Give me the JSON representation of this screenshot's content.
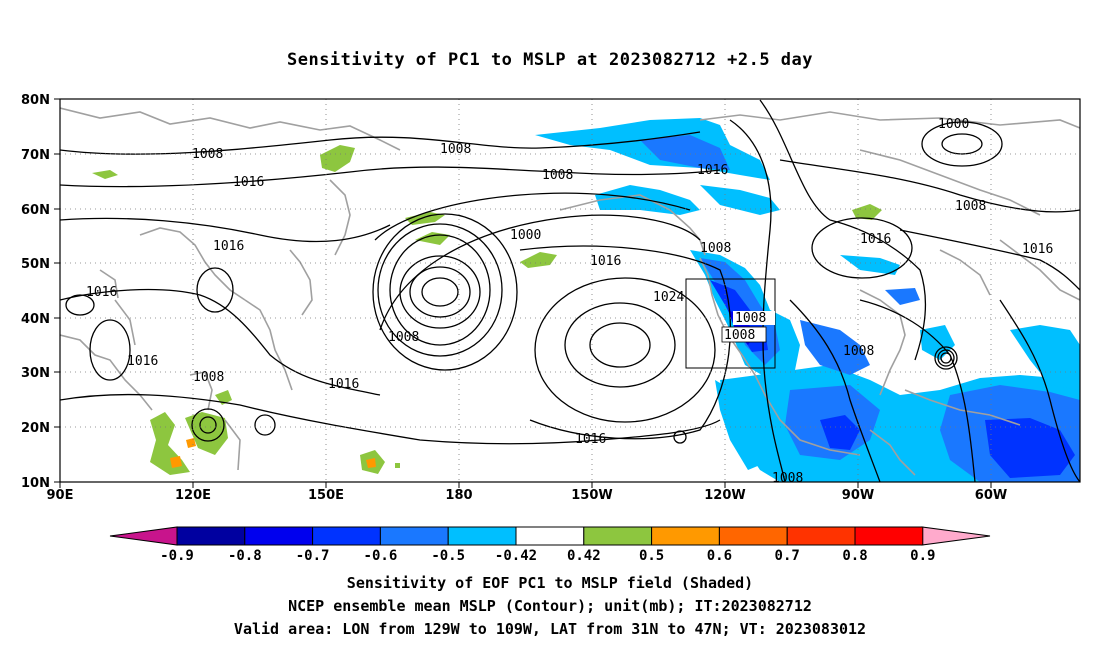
{
  "title": "Sensitivity of PC1 to MSLP at 2023082712 +2.5 day",
  "map": {
    "lat_labels": [
      "80N",
      "70N",
      "60N",
      "50N",
      "40N",
      "30N",
      "20N",
      "10N"
    ],
    "lon_labels": [
      "90E",
      "120E",
      "150E",
      "180",
      "150W",
      "120W",
      "90W",
      "60W"
    ],
    "contour_labels": [
      "1008",
      "1008",
      "1008",
      "1016",
      "1016",
      "1016",
      "1016",
      "1016",
      "1016",
      "1000",
      "1000",
      "1008",
      "1016",
      "1008",
      "1024",
      "1008",
      "1008",
      "1008",
      "1016",
      "1016",
      "1008",
      "1008",
      "1016",
      "1008",
      "1008"
    ],
    "valid_area_box": {
      "lon_from": "129W",
      "lon_to": "109W",
      "lat_from": "31N",
      "lat_to": "47N"
    }
  },
  "colorbar": {
    "labels": [
      "-0.9",
      "-0.8",
      "-0.7",
      "-0.6",
      "-0.5",
      "-0.42",
      "0.42",
      "0.5",
      "0.6",
      "0.7",
      "0.8",
      "0.9"
    ],
    "colors": [
      "#0000a0",
      "#0000ee",
      "#0033ff",
      "#1a78ff",
      "#00bfff",
      "#ffffff",
      "#8dc63f",
      "#ff9900",
      "#ff6600",
      "#ff3300",
      "#ff0000"
    ],
    "left_arrow_color": "#c8148c",
    "right_arrow_color": "#ffaacc"
  },
  "captions": {
    "line1": "Sensitivity of EOF PC1 to MSLP field (Shaded)",
    "line2": "NCEP ensemble mean MSLP (Contour); unit(mb); IT:2023082712",
    "line3": "Valid area: LON from 129W to 109W, LAT from 31N to 47N; VT: 2023083012"
  }
}
